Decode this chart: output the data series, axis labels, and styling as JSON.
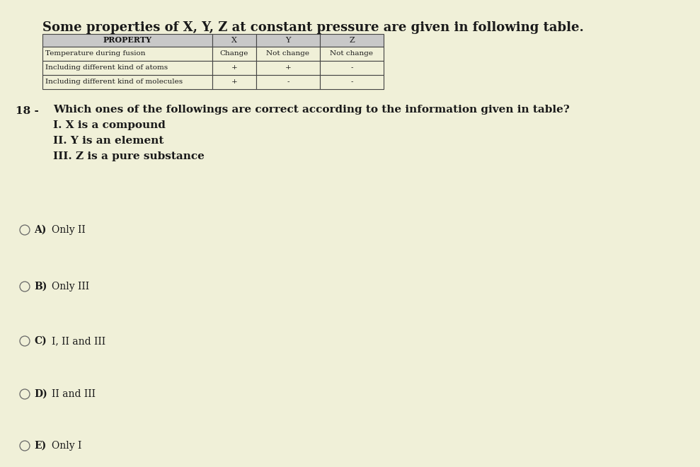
{
  "background_color": "#f0f0d8",
  "title": "Some properties of X, Y, Z at constant pressure are given in following table.",
  "question_number": "18 -",
  "question_text": "Which ones of the followings are correct according to the information given in table?",
  "statements": [
    "I. X is a compound",
    "II. Y is an element",
    "III. Z is a pure substance"
  ],
  "options": [
    {
      "label": "A)",
      "text": "Only II"
    },
    {
      "label": "B)",
      "text": "Only III"
    },
    {
      "label": "C)",
      "text": "I, II and III"
    },
    {
      "label": "D)",
      "text": "II and III"
    },
    {
      "label": "E)",
      "text": "Only I"
    }
  ],
  "table": {
    "col_headers": [
      "PROPERTY",
      "X",
      "Y",
      "Z"
    ],
    "rows": [
      [
        "Temperature during fusion",
        "Change",
        "Not change",
        "Not change"
      ],
      [
        "Including different kind of atoms",
        "+",
        "+",
        "-"
      ],
      [
        "Including different kind of molecules",
        "+",
        "-",
        "-"
      ]
    ]
  },
  "text_color": "#1a1a1a",
  "table_header_bg": "#c8c8c8",
  "table_border_color": "#444444",
  "title_fontsize": 13,
  "body_fontsize": 11,
  "table_fontsize": 8,
  "option_fontsize": 10
}
